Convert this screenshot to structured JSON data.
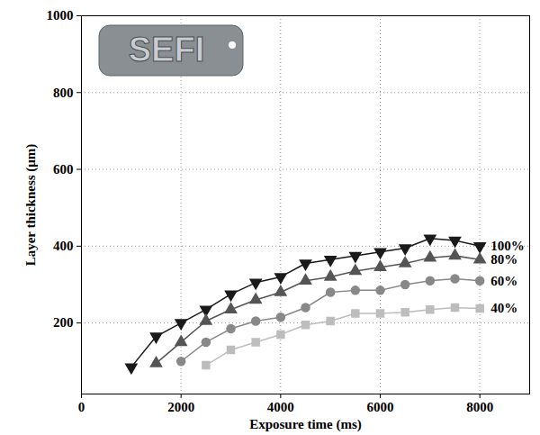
{
  "chart_data": {
    "type": "line",
    "x_label": "Exposure time (ms)",
    "y_label": "Layer thickness (μm)",
    "annotations": [
      "SEFI"
    ],
    "x": [
      1000,
      1500,
      2000,
      2500,
      3000,
      3500,
      4000,
      4500,
      5000,
      5500,
      6000,
      6500,
      7000,
      7500,
      8000
    ],
    "series": [
      {
        "name": "100%",
        "color": "#1a1a1a",
        "marker": "triangle-down",
        "line_style": "solid",
        "values": [
          85,
          165,
          200,
          235,
          275,
          305,
          320,
          355,
          365,
          375,
          385,
          395,
          420,
          415,
          400
        ]
      },
      {
        "name": "80%",
        "color": "#555555",
        "marker": "triangle",
        "line_style": "solid",
        "values": [
          null,
          95,
          150,
          205,
          235,
          260,
          280,
          310,
          320,
          335,
          345,
          355,
          370,
          375,
          365
        ]
      },
      {
        "name": "60%",
        "color": "#888888",
        "marker": "circle",
        "line_style": "solid",
        "values": [
          null,
          null,
          100,
          150,
          185,
          205,
          215,
          240,
          280,
          285,
          285,
          300,
          310,
          315,
          310
        ]
      },
      {
        "name": "40%",
        "color": "#bdbdbd",
        "marker": "square",
        "line_style": "solid",
        "values": [
          null,
          null,
          null,
          90,
          130,
          150,
          170,
          195,
          205,
          225,
          225,
          228,
          235,
          240,
          238
        ]
      }
    ],
    "xlim": [
      0,
      9000
    ],
    "xticks": [
      0,
      2000,
      4000,
      6000,
      8000
    ],
    "ylim": [
      15,
      1000
    ],
    "yticks": [
      200,
      400,
      600,
      800,
      1000
    ],
    "grid": true
  }
}
